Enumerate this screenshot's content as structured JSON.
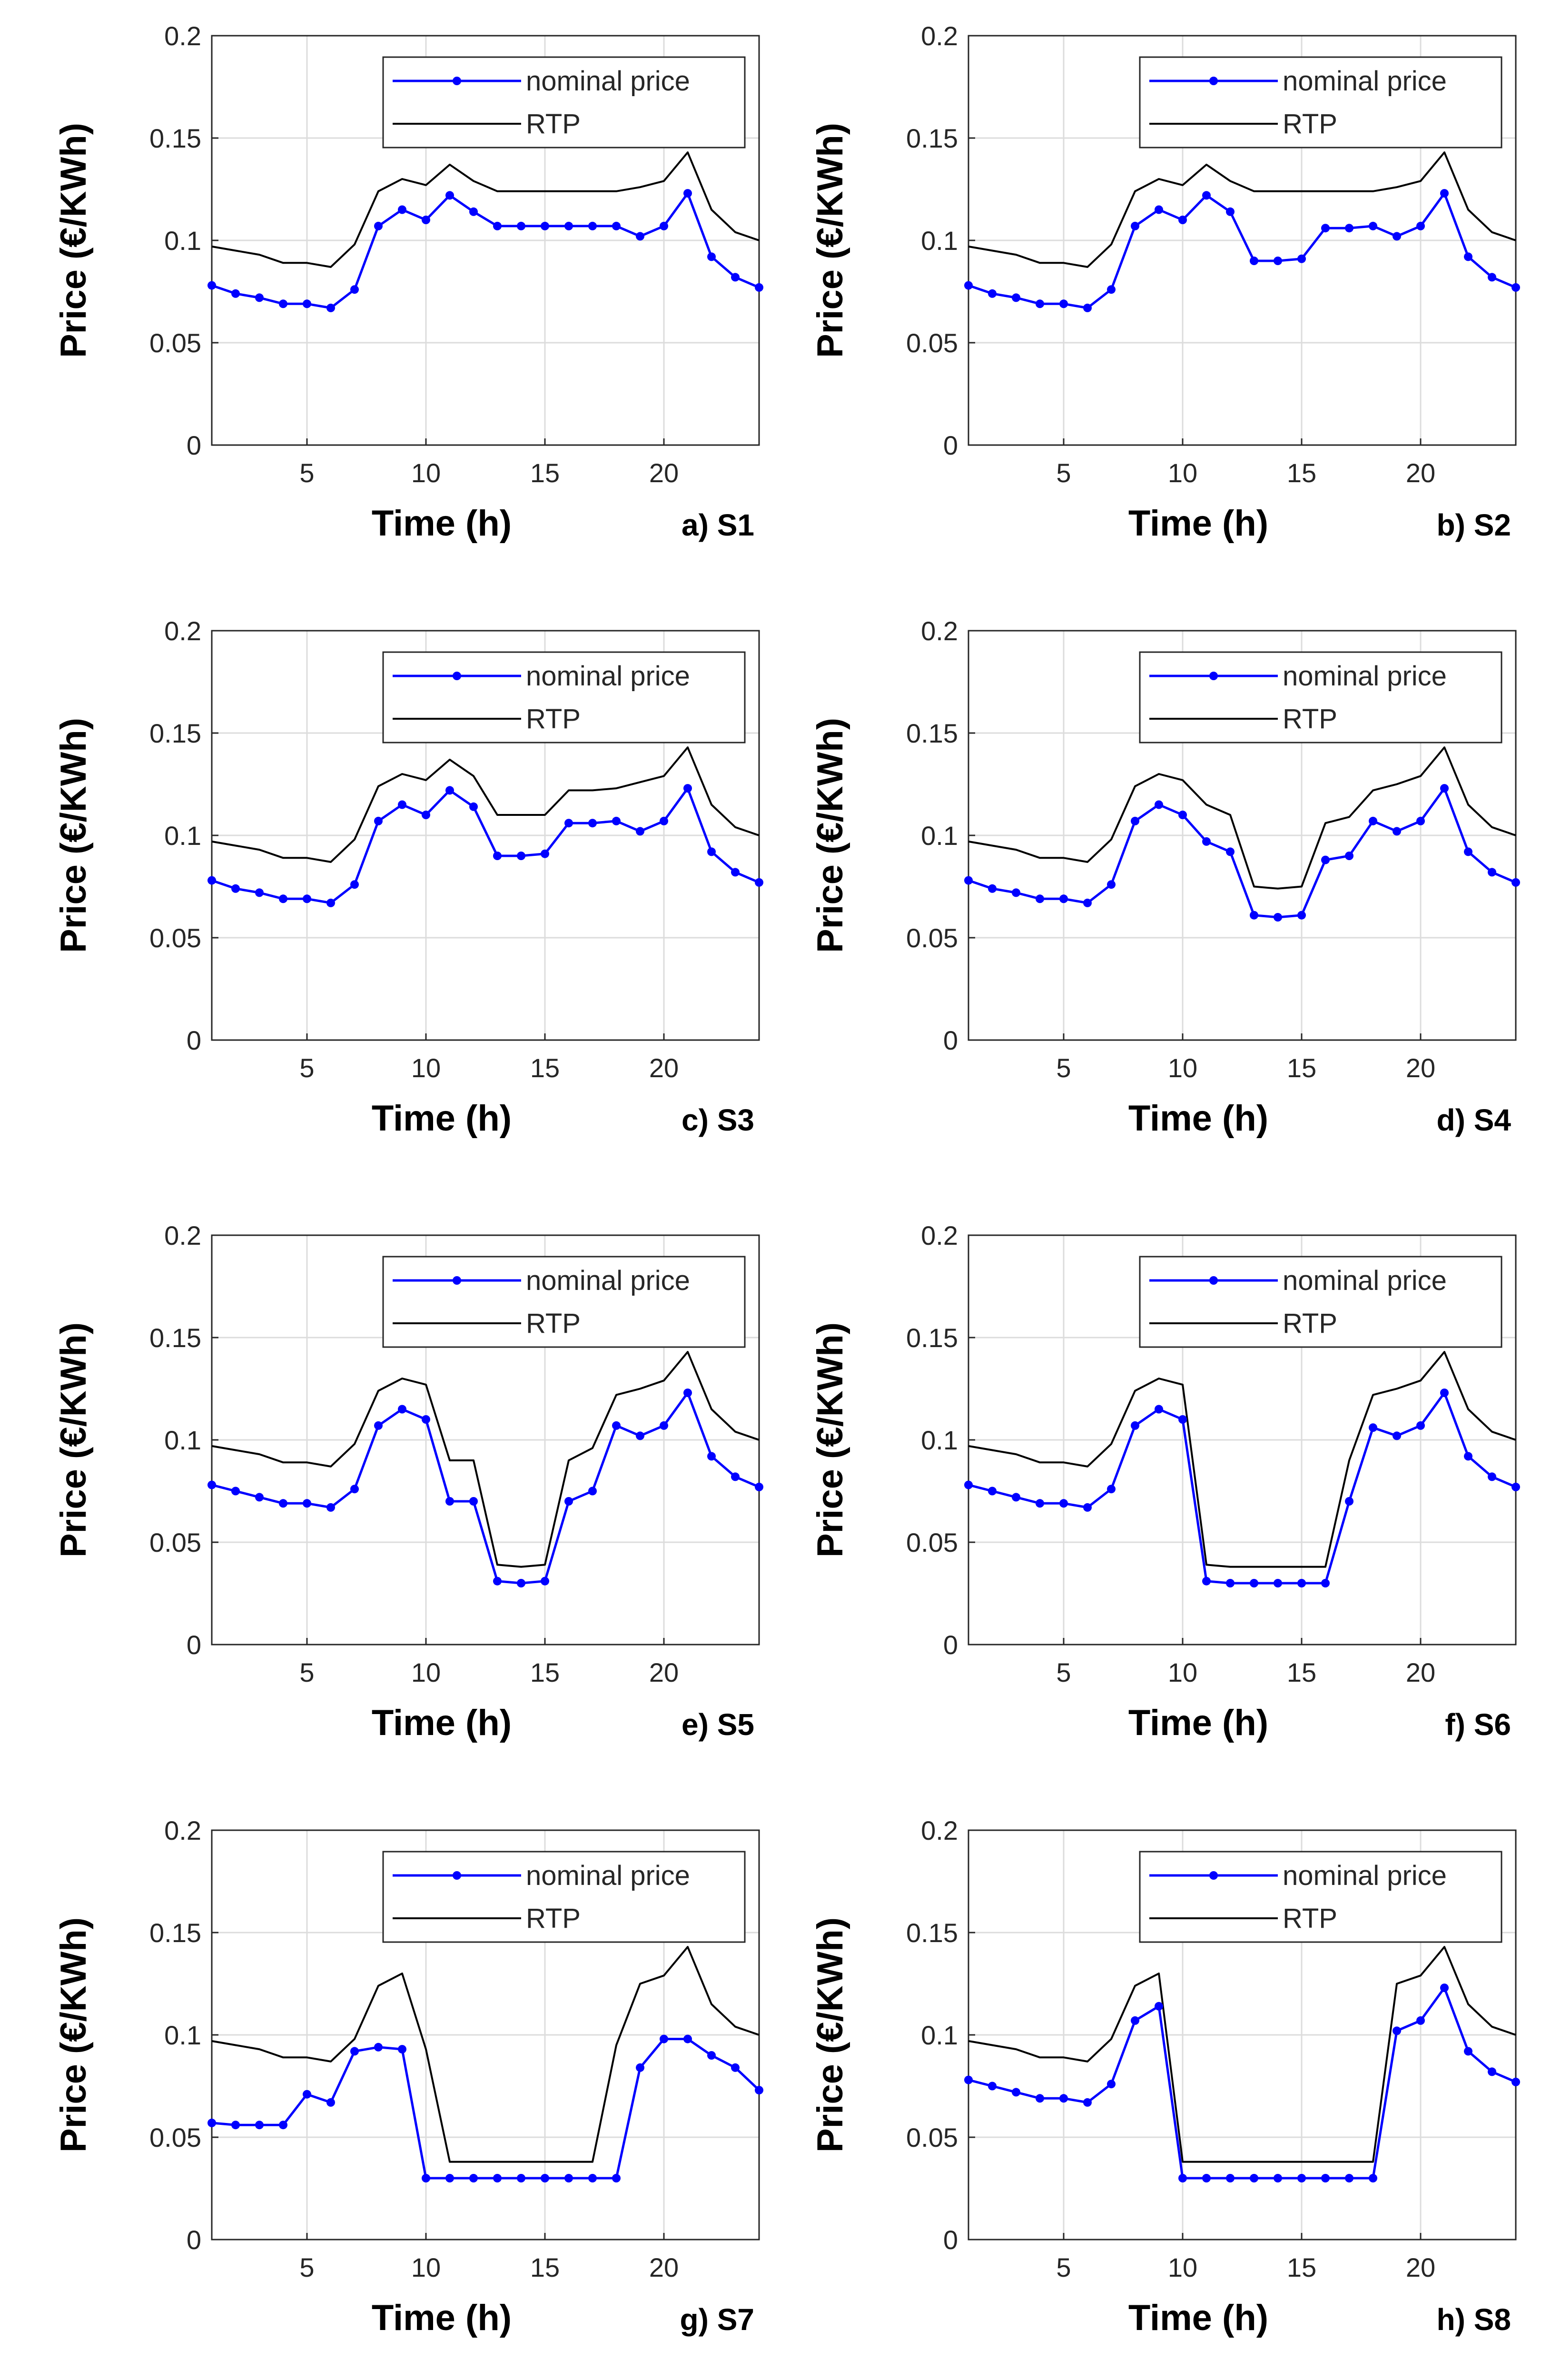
{
  "chart_data": [
    {
      "type": "line",
      "panel": "a) S1",
      "xlabel": "Time (h)",
      "ylabel": "Price (€/KWh)",
      "xlim": [
        1,
        24
      ],
      "ylim": [
        0,
        0.2
      ],
      "xticks": [
        5,
        10,
        15,
        20
      ],
      "yticks": [
        "0",
        "0.05",
        "0.1",
        "0.15",
        "0.2"
      ],
      "grid": true,
      "legend": "top-right",
      "x": [
        1,
        2,
        3,
        4,
        5,
        6,
        7,
        8,
        9,
        10,
        11,
        12,
        13,
        14,
        15,
        16,
        17,
        18,
        19,
        20,
        21,
        22,
        23,
        24
      ],
      "series": [
        {
          "name": "nominal price",
          "color": "#0000ff",
          "markers": true,
          "values": [
            0.078,
            0.074,
            0.072,
            0.069,
            0.069,
            0.067,
            0.076,
            0.107,
            0.115,
            0.11,
            0.122,
            0.114,
            0.107,
            0.107,
            0.107,
            0.107,
            0.107,
            0.107,
            0.102,
            0.107,
            0.123,
            0.092,
            0.082,
            0.077
          ]
        },
        {
          "name": "RTP",
          "color": "#000000",
          "markers": false,
          "values": [
            0.097,
            0.095,
            0.093,
            0.089,
            0.089,
            0.087,
            0.098,
            0.124,
            0.13,
            0.127,
            0.137,
            0.129,
            0.124,
            0.124,
            0.124,
            0.124,
            0.124,
            0.124,
            0.126,
            0.129,
            0.143,
            0.115,
            0.104,
            0.1
          ]
        }
      ]
    },
    {
      "type": "line",
      "panel": "b) S2",
      "xlabel": "Time (h)",
      "ylabel": "Price (€/KWh)",
      "xlim": [
        1,
        24
      ],
      "ylim": [
        0,
        0.2
      ],
      "xticks": [
        5,
        10,
        15,
        20
      ],
      "yticks": [
        "0",
        "0.05",
        "0.1",
        "0.15",
        "0.2"
      ],
      "grid": true,
      "legend": "top-right",
      "x": [
        1,
        2,
        3,
        4,
        5,
        6,
        7,
        8,
        9,
        10,
        11,
        12,
        13,
        14,
        15,
        16,
        17,
        18,
        19,
        20,
        21,
        22,
        23,
        24
      ],
      "series": [
        {
          "name": "nominal price",
          "color": "#0000ff",
          "markers": true,
          "values": [
            0.078,
            0.074,
            0.072,
            0.069,
            0.069,
            0.067,
            0.076,
            0.107,
            0.115,
            0.11,
            0.122,
            0.114,
            0.09,
            0.09,
            0.091,
            0.106,
            0.106,
            0.107,
            0.102,
            0.107,
            0.123,
            0.092,
            0.082,
            0.077
          ]
        },
        {
          "name": "RTP",
          "color": "#000000",
          "markers": false,
          "values": [
            0.097,
            0.095,
            0.093,
            0.089,
            0.089,
            0.087,
            0.098,
            0.124,
            0.13,
            0.127,
            0.137,
            0.129,
            0.124,
            0.124,
            0.124,
            0.124,
            0.124,
            0.124,
            0.126,
            0.129,
            0.143,
            0.115,
            0.104,
            0.1
          ]
        }
      ]
    },
    {
      "type": "line",
      "panel": "c) S3",
      "xlabel": "Time (h)",
      "ylabel": "Price (€/KWh)",
      "xlim": [
        1,
        24
      ],
      "ylim": [
        0,
        0.2
      ],
      "xticks": [
        5,
        10,
        15,
        20
      ],
      "yticks": [
        "0",
        "0.05",
        "0.1",
        "0.15",
        "0.2"
      ],
      "grid": true,
      "legend": "top-right",
      "x": [
        1,
        2,
        3,
        4,
        5,
        6,
        7,
        8,
        9,
        10,
        11,
        12,
        13,
        14,
        15,
        16,
        17,
        18,
        19,
        20,
        21,
        22,
        23,
        24
      ],
      "series": [
        {
          "name": "nominal price",
          "color": "#0000ff",
          "markers": true,
          "values": [
            0.078,
            0.074,
            0.072,
            0.069,
            0.069,
            0.067,
            0.076,
            0.107,
            0.115,
            0.11,
            0.122,
            0.114,
            0.09,
            0.09,
            0.091,
            0.106,
            0.106,
            0.107,
            0.102,
            0.107,
            0.123,
            0.092,
            0.082,
            0.077
          ]
        },
        {
          "name": "RTP",
          "color": "#000000",
          "markers": false,
          "values": [
            0.097,
            0.095,
            0.093,
            0.089,
            0.089,
            0.087,
            0.098,
            0.124,
            0.13,
            0.127,
            0.137,
            0.129,
            0.11,
            0.11,
            0.11,
            0.122,
            0.122,
            0.123,
            0.126,
            0.129,
            0.143,
            0.115,
            0.104,
            0.1
          ]
        }
      ]
    },
    {
      "type": "line",
      "panel": "d) S4",
      "xlabel": "Time (h)",
      "ylabel": "Price (€/KWh)",
      "xlim": [
        1,
        24
      ],
      "ylim": [
        0,
        0.2
      ],
      "xticks": [
        5,
        10,
        15,
        20
      ],
      "yticks": [
        "0",
        "0.05",
        "0.1",
        "0.15",
        "0.2"
      ],
      "grid": true,
      "legend": "top-right",
      "x": [
        1,
        2,
        3,
        4,
        5,
        6,
        7,
        8,
        9,
        10,
        11,
        12,
        13,
        14,
        15,
        16,
        17,
        18,
        19,
        20,
        21,
        22,
        23,
        24
      ],
      "series": [
        {
          "name": "nominal price",
          "color": "#0000ff",
          "markers": true,
          "values": [
            0.078,
            0.074,
            0.072,
            0.069,
            0.069,
            0.067,
            0.076,
            0.107,
            0.115,
            0.11,
            0.097,
            0.092,
            0.061,
            0.06,
            0.061,
            0.088,
            0.09,
            0.107,
            0.102,
            0.107,
            0.123,
            0.092,
            0.082,
            0.077
          ]
        },
        {
          "name": "RTP",
          "color": "#000000",
          "markers": false,
          "values": [
            0.097,
            0.095,
            0.093,
            0.089,
            0.089,
            0.087,
            0.098,
            0.124,
            0.13,
            0.127,
            0.115,
            0.11,
            0.075,
            0.074,
            0.075,
            0.106,
            0.109,
            0.122,
            0.125,
            0.129,
            0.143,
            0.115,
            0.104,
            0.1
          ]
        }
      ]
    },
    {
      "type": "line",
      "panel": "e) S5",
      "xlabel": "Time (h)",
      "ylabel": "Price (€/KWh)",
      "xlim": [
        1,
        24
      ],
      "ylim": [
        0,
        0.2
      ],
      "xticks": [
        5,
        10,
        15,
        20
      ],
      "yticks": [
        "0",
        "0.05",
        "0.1",
        "0.15",
        "0.2"
      ],
      "grid": true,
      "legend": "top-right",
      "x": [
        1,
        2,
        3,
        4,
        5,
        6,
        7,
        8,
        9,
        10,
        11,
        12,
        13,
        14,
        15,
        16,
        17,
        18,
        19,
        20,
        21,
        22,
        23,
        24
      ],
      "series": [
        {
          "name": "nominal price",
          "color": "#0000ff",
          "markers": true,
          "values": [
            0.078,
            0.075,
            0.072,
            0.069,
            0.069,
            0.067,
            0.076,
            0.107,
            0.115,
            0.11,
            0.07,
            0.07,
            0.031,
            0.03,
            0.031,
            0.07,
            0.075,
            0.107,
            0.102,
            0.107,
            0.123,
            0.092,
            0.082,
            0.077
          ]
        },
        {
          "name": "RTP",
          "color": "#000000",
          "markers": false,
          "values": [
            0.097,
            0.095,
            0.093,
            0.089,
            0.089,
            0.087,
            0.098,
            0.124,
            0.13,
            0.127,
            0.09,
            0.09,
            0.039,
            0.038,
            0.039,
            0.09,
            0.096,
            0.122,
            0.125,
            0.129,
            0.143,
            0.115,
            0.104,
            0.1
          ]
        }
      ]
    },
    {
      "type": "line",
      "panel": "f) S6",
      "xlabel": "Time (h)",
      "ylabel": "Price (€/KWh)",
      "xlim": [
        1,
        24
      ],
      "ylim": [
        0,
        0.2
      ],
      "xticks": [
        5,
        10,
        15,
        20
      ],
      "yticks": [
        "0",
        "0.05",
        "0.1",
        "0.15",
        "0.2"
      ],
      "grid": true,
      "legend": "top-right",
      "x": [
        1,
        2,
        3,
        4,
        5,
        6,
        7,
        8,
        9,
        10,
        11,
        12,
        13,
        14,
        15,
        16,
        17,
        18,
        19,
        20,
        21,
        22,
        23,
        24
      ],
      "series": [
        {
          "name": "nominal price",
          "color": "#0000ff",
          "markers": true,
          "values": [
            0.078,
            0.075,
            0.072,
            0.069,
            0.069,
            0.067,
            0.076,
            0.107,
            0.115,
            0.11,
            0.031,
            0.03,
            0.03,
            0.03,
            0.03,
            0.03,
            0.07,
            0.106,
            0.102,
            0.107,
            0.123,
            0.092,
            0.082,
            0.077
          ]
        },
        {
          "name": "RTP",
          "color": "#000000",
          "markers": false,
          "values": [
            0.097,
            0.095,
            0.093,
            0.089,
            0.089,
            0.087,
            0.098,
            0.124,
            0.13,
            0.127,
            0.039,
            0.038,
            0.038,
            0.038,
            0.038,
            0.038,
            0.09,
            0.122,
            0.125,
            0.129,
            0.143,
            0.115,
            0.104,
            0.1
          ]
        }
      ]
    },
    {
      "type": "line",
      "panel": "g) S7",
      "xlabel": "Time (h)",
      "ylabel": "Price (€/KWh)",
      "xlim": [
        1,
        24
      ],
      "ylim": [
        0,
        0.2
      ],
      "xticks": [
        5,
        10,
        15,
        20
      ],
      "yticks": [
        "0",
        "0.05",
        "0.1",
        "0.15",
        "0.2"
      ],
      "grid": true,
      "legend": "top-right",
      "x": [
        1,
        2,
        3,
        4,
        5,
        6,
        7,
        8,
        9,
        10,
        11,
        12,
        13,
        14,
        15,
        16,
        17,
        18,
        19,
        20,
        21,
        22,
        23,
        24
      ],
      "series": [
        {
          "name": "nominal price",
          "color": "#0000ff",
          "markers": true,
          "values": [
            0.057,
            0.056,
            0.056,
            0.056,
            0.071,
            0.067,
            0.092,
            0.094,
            0.093,
            0.03,
            0.03,
            0.03,
            0.03,
            0.03,
            0.03,
            0.03,
            0.03,
            0.03,
            0.084,
            0.098,
            0.098,
            0.09,
            0.084,
            0.073
          ]
        },
        {
          "name": "RTP",
          "color": "#000000",
          "markers": false,
          "values": [
            0.097,
            0.095,
            0.093,
            0.089,
            0.089,
            0.087,
            0.098,
            0.124,
            0.13,
            0.093,
            0.038,
            0.038,
            0.038,
            0.038,
            0.038,
            0.038,
            0.038,
            0.095,
            0.125,
            0.129,
            0.143,
            0.115,
            0.104,
            0.1
          ]
        }
      ]
    },
    {
      "type": "line",
      "panel": "h) S8",
      "xlabel": "Time (h)",
      "ylabel": "Price (€/KWh)",
      "xlim": [
        1,
        24
      ],
      "ylim": [
        0,
        0.2
      ],
      "xticks": [
        5,
        10,
        15,
        20
      ],
      "yticks": [
        "0",
        "0.05",
        "0.1",
        "0.15",
        "0.2"
      ],
      "grid": true,
      "legend": "top-right",
      "x": [
        1,
        2,
        3,
        4,
        5,
        6,
        7,
        8,
        9,
        10,
        11,
        12,
        13,
        14,
        15,
        16,
        17,
        18,
        19,
        20,
        21,
        22,
        23,
        24
      ],
      "series": [
        {
          "name": "nominal price",
          "color": "#0000ff",
          "markers": true,
          "values": [
            0.078,
            0.075,
            0.072,
            0.069,
            0.069,
            0.067,
            0.076,
            0.107,
            0.114,
            0.03,
            0.03,
            0.03,
            0.03,
            0.03,
            0.03,
            0.03,
            0.03,
            0.03,
            0.102,
            0.107,
            0.123,
            0.092,
            0.082,
            0.077
          ]
        },
        {
          "name": "RTP",
          "color": "#000000",
          "markers": false,
          "values": [
            0.097,
            0.095,
            0.093,
            0.089,
            0.089,
            0.087,
            0.098,
            0.124,
            0.13,
            0.038,
            0.038,
            0.038,
            0.038,
            0.038,
            0.038,
            0.038,
            0.038,
            0.038,
            0.125,
            0.129,
            0.143,
            0.115,
            0.104,
            0.1
          ]
        }
      ]
    }
  ]
}
